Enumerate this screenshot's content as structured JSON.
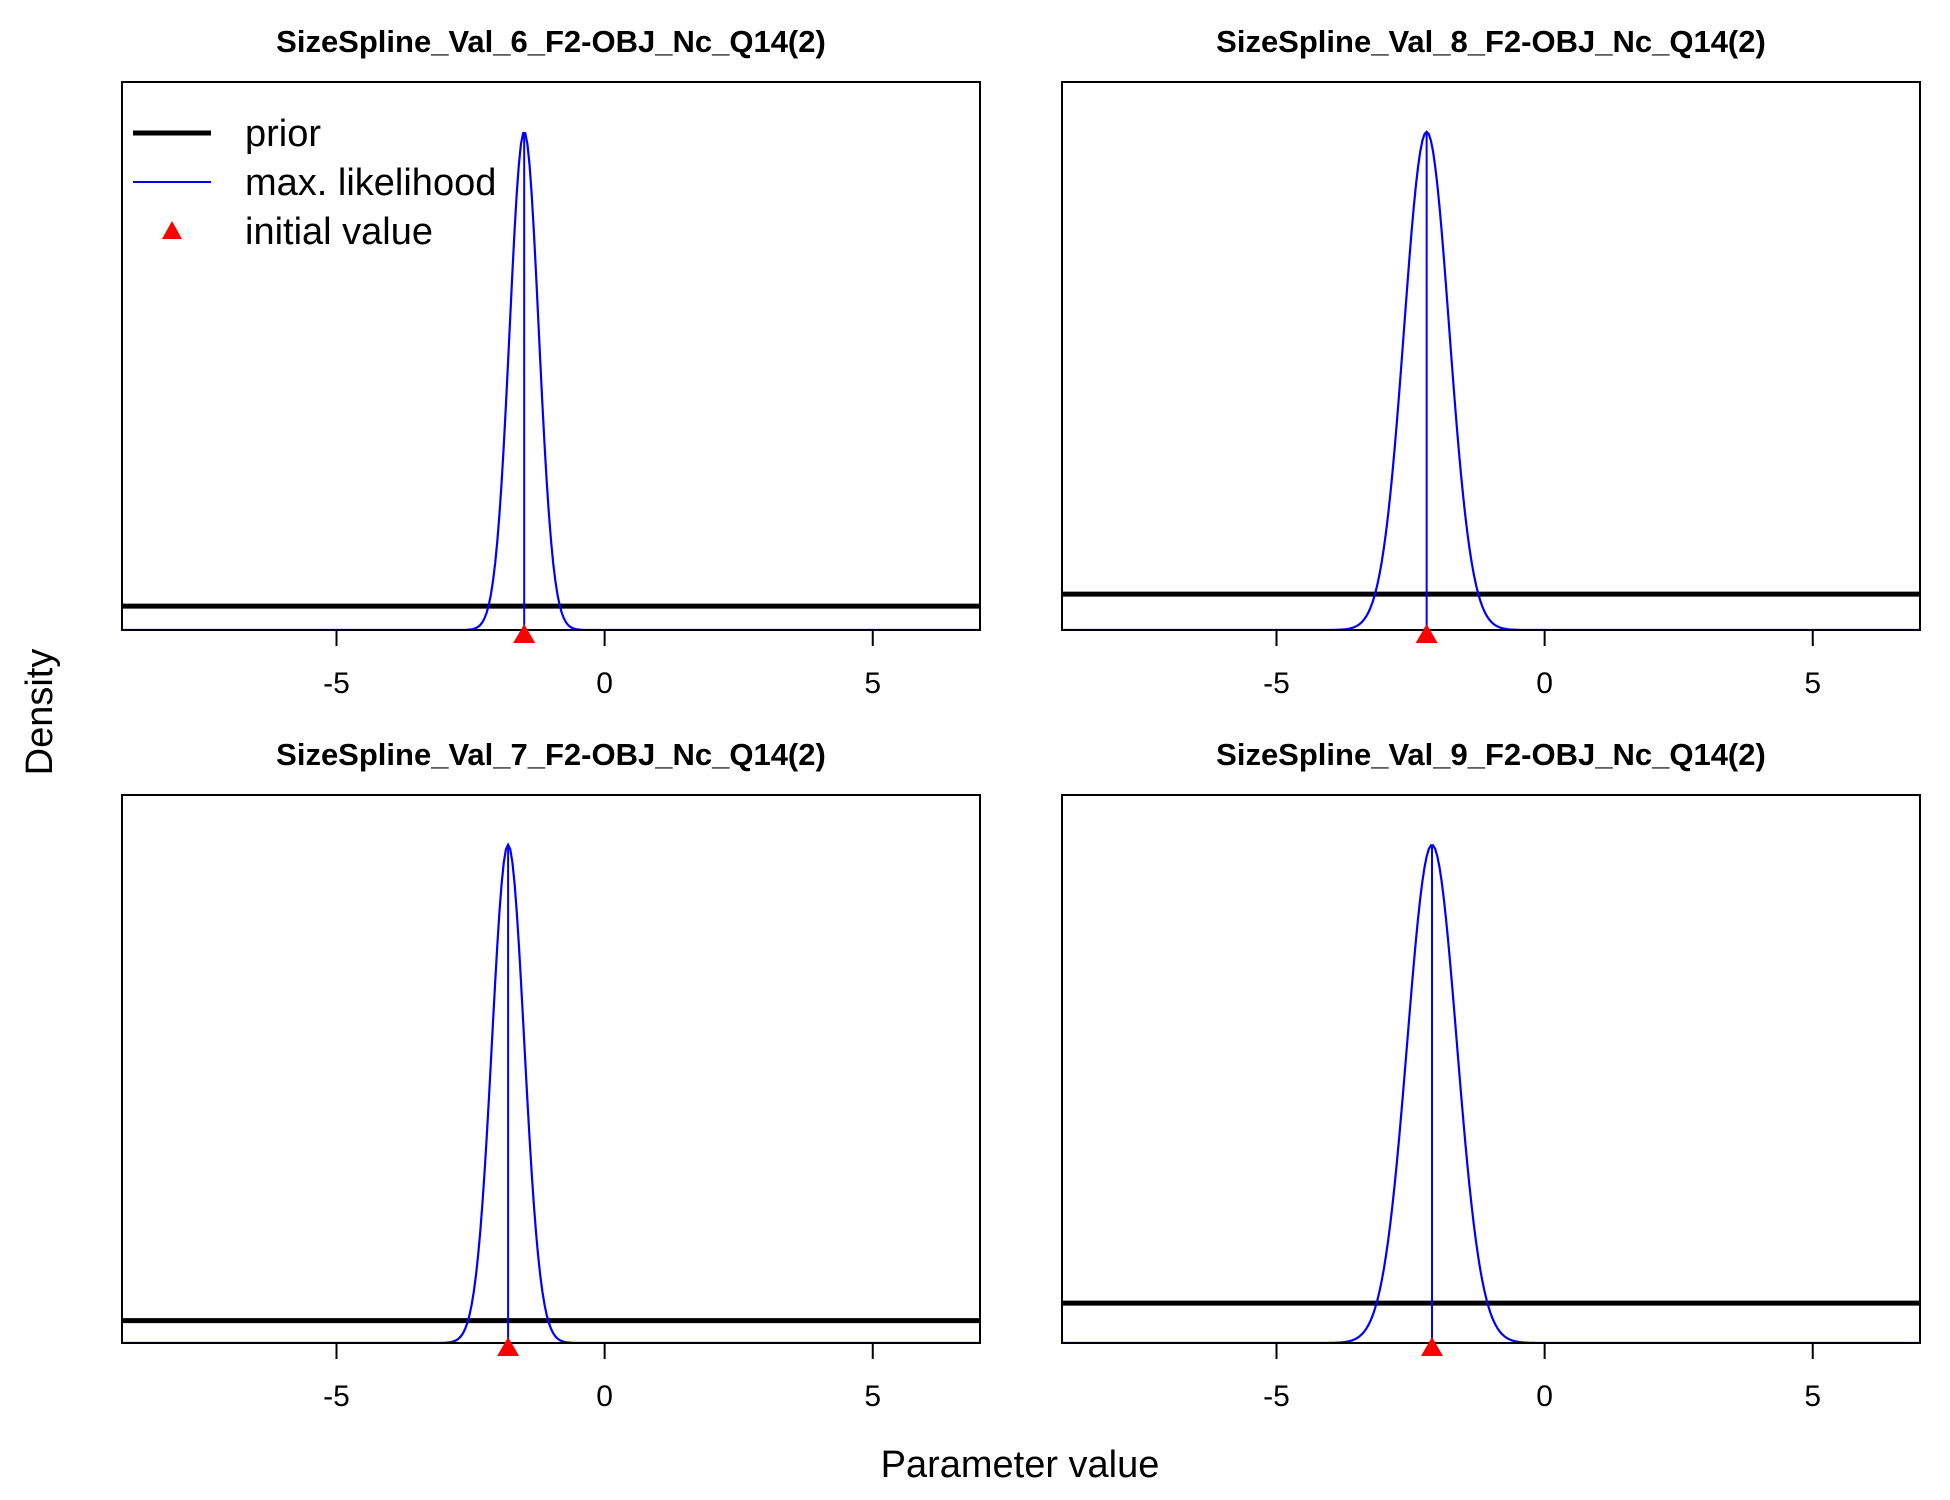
{
  "figure": {
    "xlabel": "Parameter value",
    "ylabel": "Density"
  },
  "legend": {
    "placement": "top-left of first panel",
    "items": [
      {
        "label": "prior",
        "color": "#000000",
        "kind": "line-thick"
      },
      {
        "label": "max. likelihood",
        "color": "#0000ff",
        "kind": "line-thin"
      },
      {
        "label": "initial value",
        "color": "#ff0000",
        "kind": "triangle"
      }
    ]
  },
  "colors": {
    "prior": "#000000",
    "mle": "#0000ff",
    "initial": "#ff0000"
  },
  "chart_data": [
    {
      "type": "line",
      "title": "SizeSpline_Val_6_F2-OBJ_Nc_Q14(2)",
      "xlim": [
        -9,
        7
      ],
      "xticks": [
        -5,
        0,
        5
      ],
      "ylim": [
        0,
        1.1
      ],
      "prior_level": 0.048,
      "mle": {
        "mean": -1.5,
        "sd": 0.27,
        "peak": 1.0
      },
      "initial_value": -1.5
    },
    {
      "type": "line",
      "title": "SizeSpline_Val_8_F2-OBJ_Nc_Q14(2)",
      "xlim": [
        -9,
        7
      ],
      "xticks": [
        -5,
        0,
        5
      ],
      "ylim": [
        0,
        1.1
      ],
      "prior_level": 0.072,
      "mle": {
        "mean": -2.2,
        "sd": 0.42,
        "peak": 1.0
      },
      "initial_value": -2.2
    },
    {
      "type": "line",
      "title": "SizeSpline_Val_7_F2-OBJ_Nc_Q14(2)",
      "xlim": [
        -9,
        7
      ],
      "xticks": [
        -5,
        0,
        5
      ],
      "ylim": [
        0,
        1.1
      ],
      "prior_level": 0.045,
      "mle": {
        "mean": -1.8,
        "sd": 0.3,
        "peak": 1.0
      },
      "initial_value": -1.8
    },
    {
      "type": "line",
      "title": "SizeSpline_Val_9_F2-OBJ_Nc_Q14(2)",
      "xlim": [
        -9,
        7
      ],
      "xticks": [
        -5,
        0,
        5
      ],
      "ylim": [
        0,
        1.1
      ],
      "prior_level": 0.08,
      "mle": {
        "mean": -2.1,
        "sd": 0.46,
        "peak": 1.0
      },
      "initial_value": -2.1
    }
  ]
}
